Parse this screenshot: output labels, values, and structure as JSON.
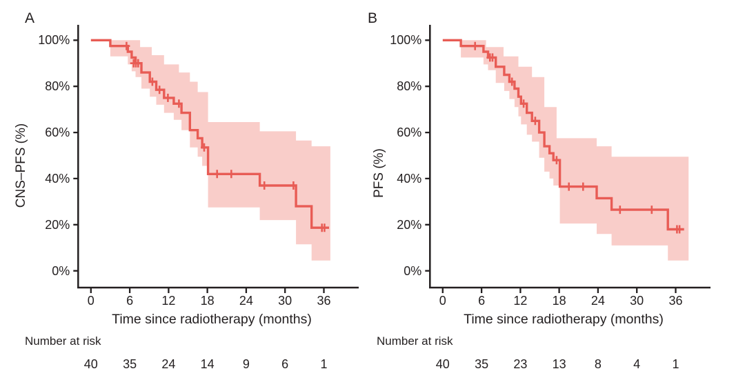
{
  "figure": {
    "background": "#ffffff"
  },
  "chart_data": [
    {
      "type": "line",
      "subtype": "kaplan_meier_step_with_ci_band",
      "panel_letter": "A",
      "ylabel": "CNS–PFS (%)",
      "xlabel": "Time since radiotherapy (months)",
      "x_ticks": [
        0,
        6,
        12,
        18,
        24,
        30,
        36
      ],
      "x_tick_labels": [
        "0",
        "6",
        "12",
        "18",
        "24",
        "30",
        "36"
      ],
      "y_ticks": [
        0,
        20,
        40,
        60,
        80,
        100
      ],
      "y_tick_labels": [
        "0%",
        "20%",
        "40%",
        "60%",
        "80%",
        "100%"
      ],
      "x_range_months": [
        0,
        41
      ],
      "y_range_pct": [
        0,
        100
      ],
      "grid": false,
      "legend": "none",
      "colors": {
        "curve": "#e85c55",
        "band": "#f9cdc9",
        "axis": "#231f20"
      },
      "survival_steps": [
        [
          0,
          100
        ],
        [
          3,
          97.5
        ],
        [
          5.7,
          95
        ],
        [
          6.3,
          92.5
        ],
        [
          6.9,
          90
        ],
        [
          7.8,
          86
        ],
        [
          9.1,
          82
        ],
        [
          10.1,
          78.5
        ],
        [
          11.3,
          75
        ],
        [
          12.8,
          72.5
        ],
        [
          14,
          68.5
        ],
        [
          15.3,
          61
        ],
        [
          16.5,
          57.5
        ],
        [
          17.2,
          53.5
        ],
        [
          18.1,
          42
        ],
        [
          26.1,
          37
        ],
        [
          31.7,
          28
        ],
        [
          34.1,
          18.7
        ]
      ],
      "curve_end_month": 36.8,
      "censor_marks": [
        [
          5.5,
          97.5
        ],
        [
          6.6,
          90
        ],
        [
          6.95,
          90
        ],
        [
          7.3,
          90
        ],
        [
          9.5,
          82
        ],
        [
          10.6,
          78.5
        ],
        [
          11.9,
          75
        ],
        [
          13.6,
          72.5
        ],
        [
          17.5,
          53.5
        ],
        [
          19.5,
          42
        ],
        [
          21.7,
          42
        ],
        [
          26.8,
          37
        ],
        [
          31.3,
          37
        ],
        [
          35.7,
          18.7
        ],
        [
          36.1,
          18.7
        ]
      ],
      "ci_band": {
        "upper": [
          [
            3,
            100
          ],
          [
            7.6,
            97
          ],
          [
            9.4,
            93.5
          ],
          [
            11.3,
            89.5
          ],
          [
            13.6,
            86
          ],
          [
            15.3,
            82
          ],
          [
            16.5,
            77.5
          ],
          [
            18.1,
            64.5
          ],
          [
            26.1,
            60.5
          ],
          [
            31.7,
            56.5
          ],
          [
            34.1,
            54
          ]
        ],
        "lower": [
          [
            3,
            93
          ],
          [
            5.7,
            89.5
          ],
          [
            6.3,
            86.5
          ],
          [
            6.9,
            84
          ],
          [
            7.8,
            79
          ],
          [
            9.1,
            75.5
          ],
          [
            10.1,
            72
          ],
          [
            11.3,
            68.5
          ],
          [
            12.8,
            65.5
          ],
          [
            14,
            61
          ],
          [
            15.3,
            53.5
          ],
          [
            16.5,
            49.5
          ],
          [
            17.2,
            45.5
          ],
          [
            18.1,
            27.5
          ],
          [
            26.1,
            22
          ],
          [
            31.7,
            11.5
          ],
          [
            34.1,
            4.5
          ]
        ],
        "end_month": 37.0
      },
      "number_at_risk": {
        "label": "Number at risk",
        "times": [
          0,
          6,
          12,
          18,
          24,
          30,
          36
        ],
        "counts": [
          "40",
          "35",
          "24",
          "14",
          "9",
          "6",
          "1"
        ]
      }
    },
    {
      "type": "line",
      "subtype": "kaplan_meier_step_with_ci_band",
      "panel_letter": "B",
      "ylabel": "PFS (%)",
      "xlabel": "Time since radiotherapy (months)",
      "x_ticks": [
        0,
        6,
        12,
        18,
        24,
        30,
        36
      ],
      "x_tick_labels": [
        "0",
        "6",
        "12",
        "18",
        "24",
        "30",
        "36"
      ],
      "y_ticks": [
        0,
        20,
        40,
        60,
        80,
        100
      ],
      "y_tick_labels": [
        "0%",
        "20%",
        "40%",
        "60%",
        "80%",
        "100%"
      ],
      "x_range_months": [
        0,
        41
      ],
      "y_range_pct": [
        0,
        100
      ],
      "grid": false,
      "legend": "none",
      "colors": {
        "curve": "#e85c55",
        "band": "#f9cdc9",
        "axis": "#231f20"
      },
      "survival_steps": [
        [
          0,
          100
        ],
        [
          2.8,
          97.5
        ],
        [
          6.3,
          95
        ],
        [
          7,
          92.5
        ],
        [
          8.2,
          88.5
        ],
        [
          9.5,
          85
        ],
        [
          10.3,
          82
        ],
        [
          11.1,
          79
        ],
        [
          11.7,
          75.5
        ],
        [
          12.1,
          72.5
        ],
        [
          13,
          68.5
        ],
        [
          13.8,
          65
        ],
        [
          14.9,
          60
        ],
        [
          15.7,
          54
        ],
        [
          16.5,
          51
        ],
        [
          17.1,
          48
        ],
        [
          18.1,
          36.5
        ],
        [
          23.8,
          31.5
        ],
        [
          26.1,
          26.5
        ],
        [
          34.8,
          18
        ]
      ],
      "curve_end_month": 37.3,
      "censor_marks": [
        [
          5,
          97.5
        ],
        [
          7.3,
          92.5
        ],
        [
          7.7,
          92.5
        ],
        [
          10.7,
          82
        ],
        [
          12.5,
          72.5
        ],
        [
          14.3,
          65
        ],
        [
          17.6,
          48
        ],
        [
          19.5,
          36.5
        ],
        [
          21.7,
          36.5
        ],
        [
          27.4,
          26.5
        ],
        [
          32.3,
          26.5
        ],
        [
          36.2,
          18
        ],
        [
          36.6,
          18
        ]
      ],
      "ci_band": {
        "upper": [
          [
            2.8,
            100
          ],
          [
            6.7,
            97
          ],
          [
            9.4,
            93
          ],
          [
            11.7,
            88.5
          ],
          [
            13.8,
            84
          ],
          [
            15.7,
            71
          ],
          [
            17.6,
            57.5
          ],
          [
            23.8,
            54
          ],
          [
            26.1,
            49.5
          ]
        ],
        "lower": [
          [
            2.8,
            92.5
          ],
          [
            6.3,
            89.5
          ],
          [
            7,
            87
          ],
          [
            8.2,
            81.5
          ],
          [
            9.5,
            78
          ],
          [
            10.3,
            74.5
          ],
          [
            11.1,
            71
          ],
          [
            11.7,
            67
          ],
          [
            12.1,
            63.5
          ],
          [
            13,
            59
          ],
          [
            13.8,
            56
          ],
          [
            14.9,
            49
          ],
          [
            15.7,
            43
          ],
          [
            16.5,
            40
          ],
          [
            17.1,
            37
          ],
          [
            18.1,
            20.5
          ],
          [
            23.8,
            16
          ],
          [
            26.1,
            11
          ],
          [
            34.8,
            4.5
          ]
        ],
        "end_month": 38.0
      },
      "number_at_risk": {
        "label": "Number at risk",
        "times": [
          0,
          6,
          12,
          18,
          24,
          30,
          36
        ],
        "counts": [
          "40",
          "35",
          "23",
          "13",
          "8",
          "4",
          "1"
        ]
      }
    }
  ]
}
